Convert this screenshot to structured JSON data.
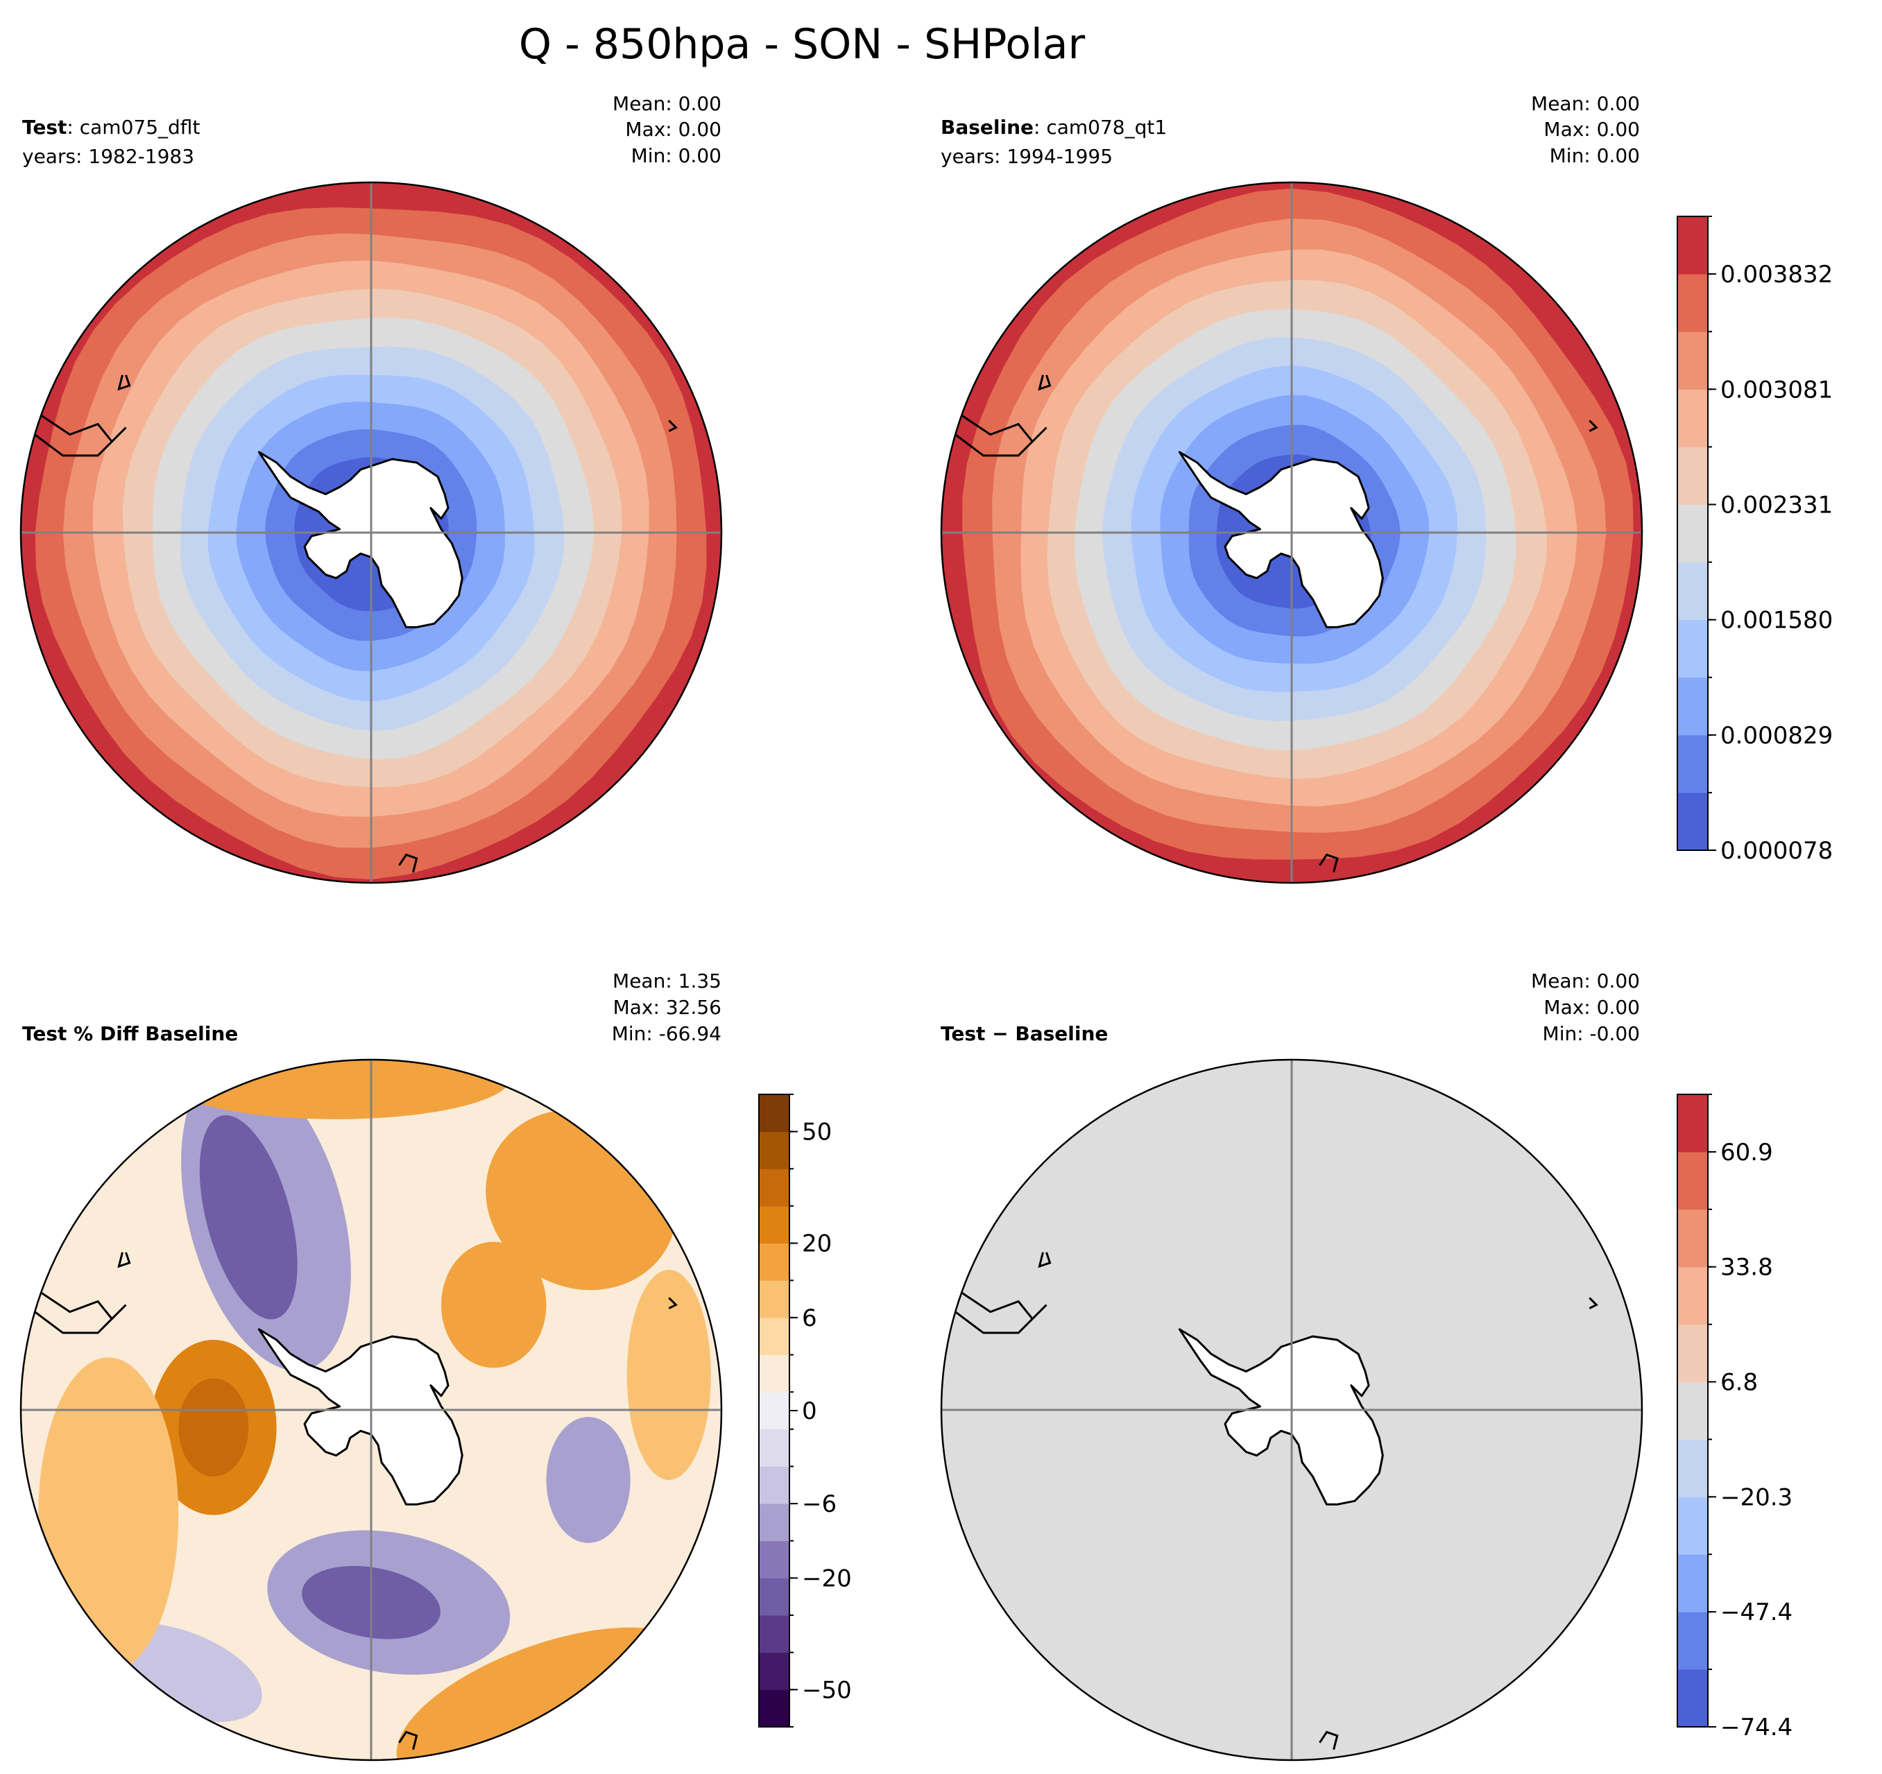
{
  "figure": {
    "title": "Q - 850hpa - SON - SHPolar"
  },
  "palettes": {
    "coolwarm": [
      "#4a62d6",
      "#6282ea",
      "#86a8fb",
      "#a7c5fd",
      "#c3d4f1",
      "#dcdcdc",
      "#efcbb6",
      "#f4b495",
      "#ee9273",
      "#e26a51",
      "#c8313a"
    ],
    "puor": [
      "#2d004b",
      "#421a67",
      "#5c3a8a",
      "#6f5da6",
      "#8777b8",
      "#a8a1cf",
      "#c8c4e1",
      "#dedcec",
      "#eeeef4",
      "#faecd9",
      "#fdd9a6",
      "#fbc173",
      "#f2a33f",
      "#de8212",
      "#c66a0b",
      "#a45606",
      "#7f3b08"
    ],
    "ocean": "#dddddd",
    "land": "#ffffff",
    "coast": "#000000",
    "gridline": "#808080"
  },
  "panels": [
    {
      "id": "test",
      "label_bold": "Test",
      "label_rest": ": cam075_dflt",
      "years": "years: 1982-1983",
      "stats": {
        "mean": "Mean:  0.00",
        "max": "Max:  0.00",
        "min": "Min:  0.00"
      },
      "field": "coolwarm-radial",
      "seed": 3
    },
    {
      "id": "baseline",
      "label_bold": "Baseline",
      "label_rest": ": cam078_qt1",
      "years": "years: 1994-1995",
      "stats": {
        "mean": "Mean:  0.00",
        "max": "Max:  0.00",
        "min": "Min:  0.00"
      },
      "field": "coolwarm-radial",
      "seed": 7
    },
    {
      "id": "pctdiff",
      "label_bold": "Test % Diff Baseline",
      "label_rest": "",
      "years": "",
      "stats": {
        "mean": "Mean:  1.35",
        "max": "Max: 32.56",
        "min": "Min: -66.94"
      },
      "field": "puor-noise",
      "seed": 11
    },
    {
      "id": "diff",
      "label_bold": "Test",
      "label_rest": " − Baseline",
      "years": "",
      "stats": {
        "mean": "Mean:  0.00",
        "max": "Max:  0.00",
        "min": "Min: -0.00"
      },
      "field": "uniform",
      "seed": 0
    }
  ],
  "colorbars": [
    {
      "id": "cb-values",
      "palette": "coolwarm",
      "tick_labels": [
        "0.000078",
        "0.000829",
        "0.001580",
        "0.002331",
        "0.003081",
        "0.003832"
      ],
      "tick_positions": [
        0,
        2,
        4,
        6,
        8,
        10
      ]
    },
    {
      "id": "cb-pct",
      "palette": "puor",
      "tick_labels": [
        "−50",
        "−20",
        "−6",
        "0",
        "6",
        "20",
        "50"
      ],
      "tick_positions": [
        1,
        4,
        6,
        8.5,
        11,
        13,
        16
      ]
    },
    {
      "id": "cb-diff",
      "palette": "coolwarm",
      "tick_labels": [
        "−74.4",
        "−47.4",
        "−20.3",
        "6.8",
        "33.8",
        "60.9"
      ],
      "tick_positions": [
        0,
        2,
        4,
        6,
        8,
        10
      ]
    }
  ],
  "chart_data": [
    {
      "type": "heatmap",
      "title": "Test: cam075_dflt  years: 1982-1983",
      "projection": "South Polar Stereographic",
      "quantity": "Q (specific humidity) at 850 hPa, SON",
      "color_levels": [
        "0.000078",
        "0.000829",
        "0.001580",
        "0.002331",
        "0.003081",
        "0.003832"
      ],
      "mean": "0.00",
      "max": "0.00",
      "min": "0.00"
    },
    {
      "type": "heatmap",
      "title": "Baseline: cam078_qt1  years: 1994-1995",
      "projection": "South Polar Stereographic",
      "quantity": "Q (specific humidity) at 850 hPa, SON",
      "color_levels": [
        "0.000078",
        "0.000829",
        "0.001580",
        "0.002331",
        "0.003081",
        "0.003832"
      ],
      "mean": "0.00",
      "max": "0.00",
      "min": "0.00"
    },
    {
      "type": "heatmap",
      "title": "Test % Diff Baseline",
      "projection": "South Polar Stereographic",
      "color_levels": [
        "−50",
        "−20",
        "−6",
        "0",
        "6",
        "20",
        "50"
      ],
      "mean": "1.35",
      "max": "32.56",
      "min": "-66.94"
    },
    {
      "type": "heatmap",
      "title": "Test − Baseline",
      "projection": "South Polar Stereographic",
      "color_levels": [
        "−74.4",
        "−47.4",
        "−20.3",
        "6.8",
        "33.8",
        "60.9"
      ],
      "mean": "0.00",
      "max": "0.00",
      "min": "-0.00"
    }
  ]
}
